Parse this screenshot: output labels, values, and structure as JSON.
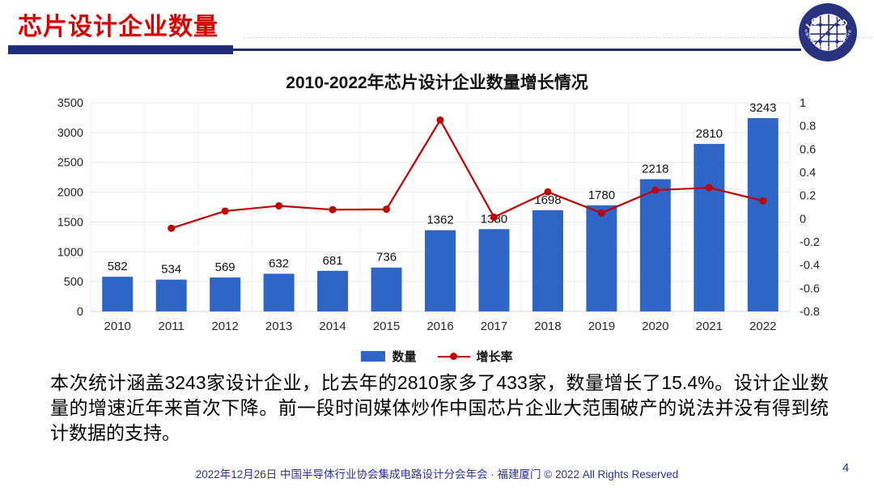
{
  "header": {
    "title": "芯片设计企业数量"
  },
  "logo": {
    "name": "ICCAD",
    "ring_text": "中国半导体行业协会集成电路设计分会"
  },
  "chart_data": {
    "type": "bar",
    "combo": "bar+line",
    "title": "2010-2022年芯片设计企业数量增长情况",
    "categories": [
      "2010",
      "2011",
      "2012",
      "2013",
      "2014",
      "2015",
      "2016",
      "2017",
      "2018",
      "2019",
      "2020",
      "2021",
      "2022"
    ],
    "series": [
      {
        "name": "数量",
        "type": "bar",
        "axis": "left",
        "values": [
          582,
          534,
          569,
          632,
          681,
          736,
          1362,
          1380,
          1698,
          1780,
          2218,
          2810,
          3243
        ],
        "color": "#3065C8"
      },
      {
        "name": "增长率",
        "type": "line",
        "axis": "right",
        "values": [
          null,
          -0.0825,
          0.0655,
          0.1107,
          0.0775,
          0.0808,
          0.8505,
          0.0132,
          0.2304,
          0.0483,
          0.2461,
          0.2669,
          0.1541
        ],
        "color": "#C00000"
      }
    ],
    "left_axis": {
      "min": 0,
      "max": 3500,
      "ticks": [
        0,
        500,
        1000,
        1500,
        2000,
        2500,
        3000,
        3500
      ]
    },
    "right_axis": {
      "min": -0.8,
      "max": 1,
      "ticks": [
        "1",
        "0.8",
        "0.6",
        "0.4",
        "0.2",
        "0",
        "-0.2",
        "-0.4",
        "-0.6",
        "-0.8"
      ]
    },
    "grid": true,
    "legend_position": "bottom"
  },
  "body": {
    "paragraph": "本次统计涵盖3243家设计企业，比去年的2810家多了433家，数量增长了15.4%。设计企业数量的增速近年来首次下降。前一段时间媒体炒作中国芯片企业大范围破产的说法并没有得到统计数据的支持。"
  },
  "footer": {
    "text": "2022年12月26日 中国半导体行业协会集成电路设计分会年会 · 福建厦门 © 2022 All Rights Reserved",
    "page_number": "4"
  },
  "colors": {
    "accent_red": "#D60000",
    "line_red": "#C00000",
    "bar_blue": "#3065C8",
    "navy": "#1F2D7B",
    "footer_navy": "#2E3192",
    "grid_gray": "#E7E7E7",
    "axis_gray": "#D4D4D4",
    "tick_text": "#262626"
  }
}
